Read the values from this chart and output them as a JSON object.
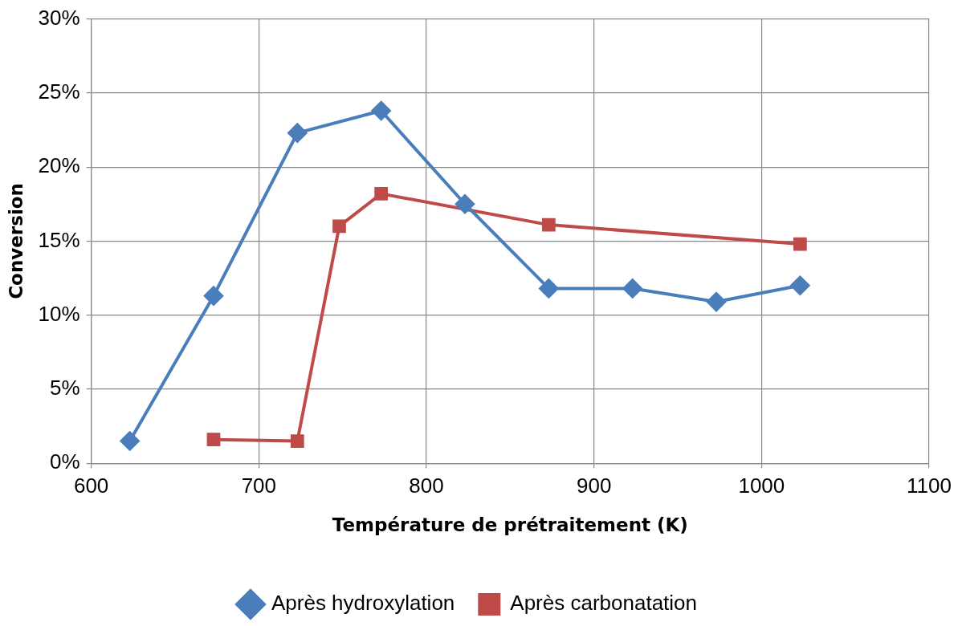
{
  "chart_data": {
    "type": "line",
    "xlabel": "Température de prétraitement (K)",
    "ylabel": "Conversion",
    "xlim": [
      600,
      1100
    ],
    "xticks": [
      600,
      700,
      800,
      900,
      1000,
      1100
    ],
    "ylim": [
      0,
      30
    ],
    "yticks": [
      {
        "value": 0,
        "label": "0%"
      },
      {
        "value": 5,
        "label": "5%"
      },
      {
        "value": 10,
        "label": "10%"
      },
      {
        "value": 15,
        "label": "15%"
      },
      {
        "value": 20,
        "label": "20%"
      },
      {
        "value": 25,
        "label": "25%"
      },
      {
        "value": 30,
        "label": "30%"
      }
    ],
    "grid": true,
    "legend": "bottom",
    "line_style": "solid",
    "series": [
      {
        "name": "Après hydroxylation",
        "color": "#4a7ebb",
        "marker": "diamond",
        "x": [
          623,
          673,
          723,
          773,
          823,
          873,
          923,
          973,
          1023
        ],
        "values": [
          1.5,
          11.3,
          22.3,
          23.8,
          17.5,
          11.8,
          11.8,
          10.9,
          12.0
        ]
      },
      {
        "name": "Après carbonatation",
        "color": "#be4b48",
        "marker": "square",
        "x": [
          673,
          723,
          748,
          773,
          873,
          1023
        ],
        "values": [
          1.6,
          1.5,
          16.0,
          18.2,
          16.1,
          14.8
        ]
      }
    ]
  }
}
